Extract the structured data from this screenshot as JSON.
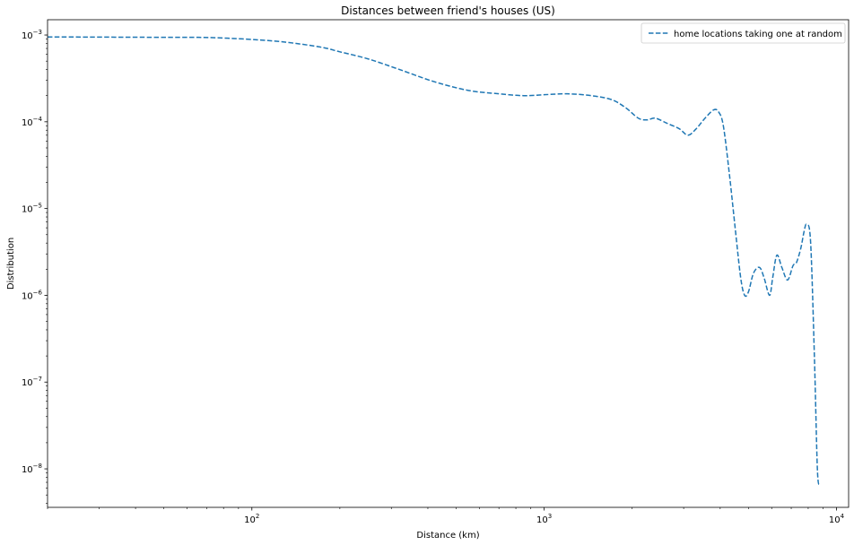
{
  "chart_data": {
    "type": "line",
    "title": "Distances between friend's houses (US)",
    "xlabel": "Distance (km)",
    "ylabel": "Distribution",
    "xscale": "log",
    "yscale": "log",
    "xlim": [
      20,
      11000
    ],
    "ylim": [
      3.6e-09,
      0.0015
    ],
    "x_ticks": [
      {
        "value": 100,
        "base": "10",
        "exp": "2"
      },
      {
        "value": 1000,
        "base": "10",
        "exp": "3"
      },
      {
        "value": 10000,
        "base": "10",
        "exp": "4"
      }
    ],
    "y_ticks": [
      {
        "value": 0.001,
        "base": "10",
        "exp": "−3"
      },
      {
        "value": 0.0001,
        "base": "10",
        "exp": "−4"
      },
      {
        "value": 1e-05,
        "base": "10",
        "exp": "−5"
      },
      {
        "value": 1e-06,
        "base": "10",
        "exp": "−6"
      },
      {
        "value": 1e-07,
        "base": "10",
        "exp": "−7"
      },
      {
        "value": 1e-08,
        "base": "10",
        "exp": "−8"
      }
    ],
    "grid": false,
    "legend_position": "top-right",
    "series": [
      {
        "name": "home locations taking one at random",
        "color": "#1f77b4",
        "style": "dashed",
        "x": [
          20,
          50,
          75,
          120,
          170,
          200,
          250,
          320,
          420,
          550,
          700,
          850,
          1000,
          1200,
          1450,
          1700,
          1900,
          2100,
          2250,
          2400,
          2650,
          2900,
          3100,
          3300,
          3550,
          3800,
          3950,
          4100,
          4300,
          4500,
          4700,
          4850,
          5000,
          5200,
          5450,
          5650,
          5900,
          6050,
          6250,
          6500,
          6800,
          7100,
          7300,
          7550,
          7750,
          7900,
          8150,
          8400,
          8600,
          8750
        ],
        "y": [
          0.00095,
          0.00094,
          0.00093,
          0.00085,
          0.00073,
          0.00064,
          0.00053,
          0.0004,
          0.00029,
          0.00023,
          0.00021,
          0.0002,
          0.000205,
          0.00021,
          0.0002,
          0.00018,
          0.000145,
          0.00011,
          0.000105,
          0.00011,
          9.5e-05,
          8.3e-05,
          7e-05,
          8.2e-05,
          0.00011,
          0.000137,
          0.00013,
          9e-05,
          2.5e-05,
          6e-06,
          1.6e-06,
          1e-06,
          1.1e-06,
          1.8e-06,
          2.1e-06,
          1.6e-06,
          1e-06,
          1.6e-06,
          2.9e-06,
          2.1e-06,
          1.5e-06,
          2.2e-06,
          2.4e-06,
          3.5e-06,
          5.5e-06,
          6.5e-06,
          4.2e-06,
          2e-07,
          1e-08,
          6.5e-09
        ]
      }
    ]
  }
}
